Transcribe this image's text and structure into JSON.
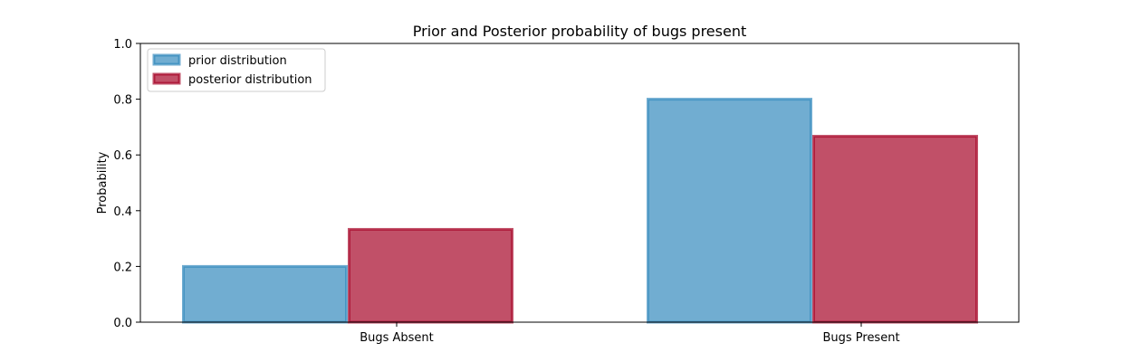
{
  "chart_data": {
    "type": "bar",
    "title": "Prior and Posterior probability of bugs present",
    "xlabel": "",
    "ylabel": "Probability",
    "categories": [
      "Bugs Absent",
      "Bugs Present"
    ],
    "series": [
      {
        "name": "prior distribution",
        "values": [
          0.2,
          0.8
        ],
        "fill": "#348abd",
        "edge": "#348abd"
      },
      {
        "name": "posterior distribution",
        "values": [
          0.333,
          0.667
        ],
        "fill": "#a60628",
        "edge": "#a60628"
      }
    ],
    "ylim": [
      0,
      1.0
    ],
    "yticks": [
      "0.0",
      "0.2",
      "0.4",
      "0.6",
      "0.8",
      "1.0"
    ],
    "grid": false,
    "legend_position": "top-left"
  }
}
